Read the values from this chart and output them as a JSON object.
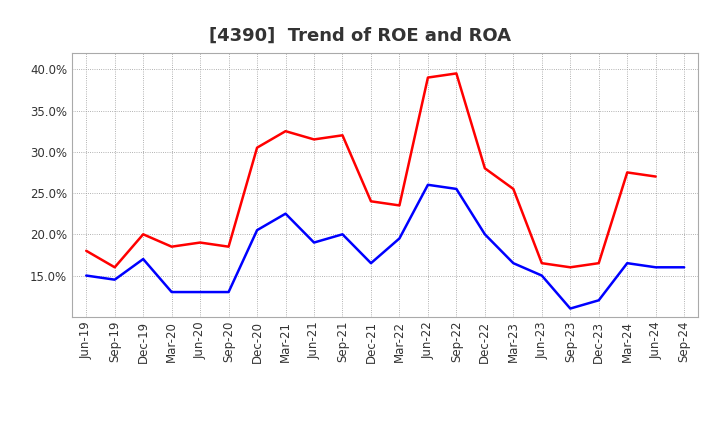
{
  "title": "[4390]  Trend of ROE and ROA",
  "x_labels": [
    "Jun-19",
    "Sep-19",
    "Dec-19",
    "Mar-20",
    "Jun-20",
    "Sep-20",
    "Dec-20",
    "Mar-21",
    "Jun-21",
    "Sep-21",
    "Dec-21",
    "Mar-22",
    "Jun-22",
    "Sep-22",
    "Dec-22",
    "Mar-23",
    "Jun-23",
    "Sep-23",
    "Dec-23",
    "Mar-24",
    "Jun-24",
    "Sep-24"
  ],
  "roe": [
    18.0,
    16.0,
    20.0,
    18.5,
    19.0,
    18.5,
    30.5,
    32.5,
    31.5,
    32.0,
    24.0,
    23.5,
    39.0,
    39.5,
    28.0,
    25.5,
    16.5,
    16.0,
    16.5,
    27.5,
    27.0,
    null
  ],
  "roa": [
    15.0,
    14.5,
    17.0,
    13.0,
    13.0,
    13.0,
    20.5,
    22.5,
    19.0,
    20.0,
    16.5,
    19.5,
    26.0,
    25.5,
    20.0,
    16.5,
    15.0,
    11.0,
    12.0,
    16.5,
    16.0,
    16.0
  ],
  "roe_color": "#FF0000",
  "roa_color": "#0000FF",
  "ylim": [
    10.0,
    42.0
  ],
  "yticks": [
    15.0,
    20.0,
    25.0,
    30.0,
    35.0,
    40.0
  ],
  "background_color": "#FFFFFF",
  "plot_bg_color": "#FFFFFF",
  "grid_color": "#999999",
  "title_fontsize": 13,
  "legend_fontsize": 10,
  "tick_fontsize": 8.5,
  "title_color": "#333333",
  "tick_color": "#333333"
}
